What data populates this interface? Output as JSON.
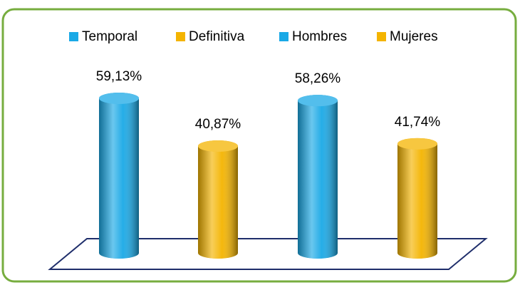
{
  "chart_data": {
    "type": "bar",
    "series": [
      {
        "name": "Temporal",
        "color": "#1aa9e6",
        "values": [
          59.13
        ],
        "value_labels": [
          "59,13%"
        ]
      },
      {
        "name": "Definitiva",
        "color": "#f4b400",
        "values": [
          40.87
        ],
        "value_labels": [
          "40,87%"
        ]
      },
      {
        "name": "Hombres",
        "color": "#1aa9e6",
        "values": [
          58.26
        ],
        "value_labels": [
          "58,26%"
        ]
      },
      {
        "name": "Mujeres",
        "color": "#f4b400",
        "values": [
          41.74
        ],
        "value_labels": [
          "41,74%"
        ]
      }
    ]
  }
}
